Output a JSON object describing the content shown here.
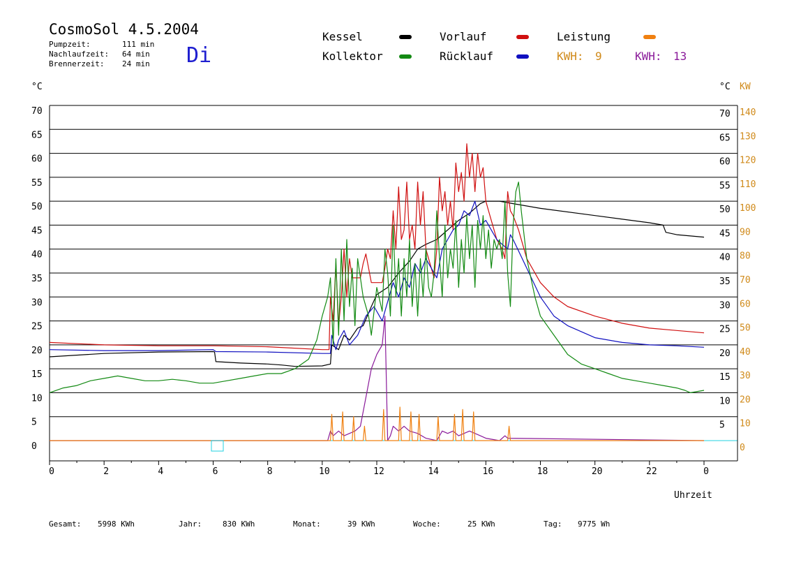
{
  "header": {
    "title": "CosmoSol 4.5.2004",
    "day": "Di",
    "stats": [
      {
        "label": "Pumpzeit:",
        "value": "111 min"
      },
      {
        "label": "Nachlaufzeit:",
        "value": "64 min"
      },
      {
        "label": "Brennerzeit:",
        "value": "24 min"
      }
    ]
  },
  "legend": {
    "kessel": "Kessel",
    "kollektor": "Kollektor",
    "vorlauf": "Vorlauf",
    "ruecklauf": "Rücklauf",
    "leistung": "Leistung",
    "kwh1_label": "KWH:",
    "kwh1_value": "9",
    "kwh2_label": "KWH:",
    "kwh2_value": "13"
  },
  "axes": {
    "left_unit": "°C",
    "right_unit_c": "°C",
    "right_unit_kw": "KW",
    "xlabel": "Uhrzeit"
  },
  "footer": {
    "gesamt_label": "Gesamt:",
    "gesamt_value": "5998 KWh",
    "jahr_label": "Jahr:",
    "jahr_value": "830 KWh",
    "monat_label": "Monat:",
    "monat_value": "39 KWh",
    "woche_label": "Woche:",
    "woche_value": "25 KWh",
    "tag_label": "Tag:",
    "tag_value": "9775 Wh"
  },
  "colors": {
    "kessel": "#000000",
    "kollektor": "#138a13",
    "vorlauf": "#d01010",
    "ruecklauf": "#1010c0",
    "leistung": "#f08010",
    "kwh2": "#8a1a9a",
    "kw_axis": "#d08a1a",
    "baseline": "#22d0e0"
  },
  "chart_data": {
    "type": "line",
    "x_ticks": [
      "0",
      "2",
      "4",
      "6",
      "8",
      "10",
      "12",
      "14",
      "16",
      "18",
      "20",
      "22",
      "0"
    ],
    "xlim": [
      0,
      24
    ],
    "ylim": [
      0,
      70
    ],
    "y_ticks_left": [
      "0",
      "5",
      "10",
      "15",
      "20",
      "25",
      "30",
      "35",
      "40",
      "45",
      "50",
      "55",
      "60",
      "65",
      "70"
    ],
    "y2lim": [
      0,
      140
    ],
    "y_ticks_right_kw": [
      "0",
      "10",
      "20",
      "30",
      "40",
      "50",
      "60",
      "70",
      "80",
      "90",
      "100",
      "110",
      "120",
      "130",
      "140"
    ],
    "series": [
      {
        "name": "Kessel",
        "color": "#000000",
        "x": [
          0,
          2,
          4,
          6,
          6.05,
          6.1,
          7,
          8,
          8.5,
          9,
          10,
          10.3,
          10.35,
          10.6,
          10.8,
          11,
          11.3,
          11.5,
          11.8,
          12,
          12.4,
          12.8,
          13.2,
          13.5,
          13.8,
          14.2,
          14.6,
          15,
          15.4,
          15.8,
          16,
          16.5,
          17,
          18,
          20,
          22,
          22.5,
          22.6,
          23,
          24
        ],
        "y": [
          17.5,
          18.2,
          18.5,
          18.6,
          18.5,
          16.5,
          16.2,
          16.0,
          15.8,
          15.5,
          15.6,
          16.0,
          20.0,
          19.0,
          22.0,
          21.0,
          23.5,
          24.0,
          28.0,
          30.5,
          32.0,
          35.0,
          37.5,
          40.0,
          41.0,
          42.0,
          44.0,
          46.0,
          47.5,
          49.5,
          50.0,
          50.0,
          49.5,
          48.5,
          47.0,
          45.5,
          45.0,
          43.5,
          43.0,
          42.5
        ]
      },
      {
        "name": "Vorlauf",
        "color": "#d01010",
        "x": [
          0,
          2,
          4,
          6,
          8,
          10,
          10.25,
          10.3,
          10.4,
          10.5,
          10.6,
          10.7,
          10.8,
          10.9,
          11.0,
          11.1,
          11.4,
          11.5,
          11.6,
          11.7,
          11.8,
          12.0,
          12.2,
          12.3,
          12.4,
          12.5,
          12.6,
          12.7,
          12.8,
          12.9,
          13.0,
          13.1,
          13.2,
          13.3,
          13.4,
          13.5,
          13.6,
          13.7,
          13.8,
          13.9,
          14.0,
          14.1,
          14.2,
          14.3,
          14.4,
          14.5,
          14.6,
          14.7,
          14.8,
          14.9,
          15.0,
          15.1,
          15.2,
          15.3,
          15.4,
          15.5,
          15.6,
          15.7,
          15.8,
          15.9,
          16.0,
          16.1,
          16.2,
          16.3,
          16.4,
          16.5,
          16.6,
          16.7,
          16.8,
          16.9,
          17.0,
          17.2,
          17.5,
          18,
          18.5,
          19,
          20,
          21,
          22,
          23,
          24
        ],
        "y": [
          20.5,
          20.0,
          19.8,
          19.8,
          19.6,
          19.0,
          19.0,
          30.0,
          25.0,
          37.0,
          24.0,
          30.0,
          40.0,
          30.0,
          38.0,
          34.0,
          34.0,
          37.0,
          39.0,
          36.0,
          33.0,
          33.0,
          33.0,
          36.0,
          40.0,
          38.0,
          48.0,
          40.0,
          53.0,
          42.0,
          44.0,
          54.0,
          42.0,
          45.0,
          40.0,
          54.0,
          45.0,
          52.0,
          40.0,
          38.0,
          36.0,
          34.0,
          40.0,
          55.0,
          48.0,
          52.0,
          45.0,
          50.0,
          44.0,
          58.0,
          52.0,
          56.0,
          50.0,
          62.0,
          55.0,
          60.0,
          52.0,
          60.0,
          55.0,
          57.0,
          50.0,
          48.0,
          46.0,
          44.0,
          42.0,
          41.0,
          40.0,
          38.0,
          52.0,
          48.0,
          47.0,
          44.0,
          38.0,
          33.0,
          30.0,
          28.0,
          26.0,
          24.5,
          23.5,
          23.0,
          22.5
        ]
      },
      {
        "name": "Rücklauf",
        "color": "#1010c0",
        "x": [
          0,
          2,
          4,
          6,
          6.1,
          8,
          10,
          10.3,
          10.35,
          10.5,
          10.6,
          10.8,
          11,
          11.3,
          11.6,
          11.9,
          12.2,
          12.4,
          12.6,
          12.8,
          13,
          13.2,
          13.4,
          13.6,
          13.8,
          14,
          14.2,
          14.4,
          14.6,
          14.8,
          15,
          15.2,
          15.4,
          15.6,
          15.8,
          16,
          16.2,
          16.4,
          16.6,
          16.8,
          16.9,
          17,
          17.5,
          18,
          18.5,
          19,
          20,
          21,
          22,
          23,
          24
        ],
        "y": [
          19.0,
          18.8,
          18.8,
          19.0,
          18.6,
          18.5,
          18.2,
          18.2,
          22.0,
          19.0,
          21.0,
          23.0,
          20.0,
          22.0,
          26.0,
          28.0,
          25.0,
          29.0,
          33.0,
          30.0,
          34.0,
          32.0,
          37.0,
          35.0,
          38.0,
          36.0,
          34.0,
          40.0,
          42.0,
          44.0,
          45.0,
          48.0,
          47.0,
          50.0,
          45.0,
          46.0,
          44.0,
          42.0,
          41.0,
          40.0,
          43.0,
          42.0,
          36.0,
          30.0,
          26.0,
          24.0,
          21.5,
          20.5,
          20.0,
          19.8,
          19.5
        ]
      },
      {
        "name": "Kollektor",
        "color": "#138a13",
        "x": [
          0,
          0.5,
          1,
          1.5,
          2,
          2.5,
          3,
          3.5,
          4,
          4.5,
          5,
          5.5,
          6,
          6.5,
          7,
          7.5,
          8,
          8.5,
          9,
          9.5,
          9.8,
          10,
          10.2,
          10.3,
          10.4,
          10.5,
          10.6,
          10.7,
          10.8,
          10.9,
          11,
          11.1,
          11.2,
          11.3,
          11.5,
          11.7,
          11.8,
          12,
          12.2,
          12.3,
          12.4,
          12.5,
          12.6,
          12.7,
          12.8,
          12.9,
          13,
          13.1,
          13.2,
          13.3,
          13.4,
          13.5,
          13.6,
          13.7,
          13.8,
          13.9,
          14,
          14.1,
          14.2,
          14.3,
          14.4,
          14.5,
          14.6,
          14.7,
          14.8,
          14.9,
          15,
          15.1,
          15.2,
          15.3,
          15.4,
          15.5,
          15.6,
          15.7,
          15.8,
          15.9,
          16,
          16.1,
          16.2,
          16.3,
          16.4,
          16.5,
          16.6,
          16.7,
          16.8,
          16.9,
          17,
          17.1,
          17.2,
          17.3,
          17.5,
          17.8,
          18,
          18.5,
          19,
          19.5,
          20,
          20.5,
          21,
          21.5,
          22,
          22.5,
          23,
          23.3,
          23.5,
          24
        ],
        "y": [
          10.0,
          11.0,
          11.5,
          12.5,
          13.0,
          13.5,
          13.0,
          12.5,
          12.5,
          12.8,
          12.5,
          12.0,
          12.0,
          12.5,
          13.0,
          13.5,
          14.0,
          14.0,
          15.0,
          17.0,
          21.0,
          26.0,
          30.0,
          34.0,
          20.0,
          38.0,
          22.0,
          40.0,
          25.0,
          42.0,
          28.0,
          36.0,
          24.0,
          38.0,
          30.0,
          26.0,
          22.0,
          32.0,
          27.0,
          40.0,
          35.0,
          26.0,
          45.0,
          30.0,
          38.0,
          26.0,
          38.0,
          30.0,
          42.0,
          28.0,
          37.0,
          26.0,
          38.0,
          30.0,
          40.0,
          32.0,
          30.0,
          35.0,
          48.0,
          38.0,
          30.0,
          45.0,
          34.0,
          40.0,
          36.0,
          46.0,
          32.0,
          42.0,
          35.0,
          47.0,
          38.0,
          45.0,
          32.0,
          46.0,
          40.0,
          47.0,
          38.0,
          44.0,
          36.0,
          42.0,
          40.0,
          42.0,
          38.0,
          50.0,
          35.0,
          28.0,
          45.0,
          52.0,
          54.0,
          48.0,
          38.0,
          30.0,
          26.0,
          22.0,
          18.0,
          16.0,
          15.0,
          14.0,
          13.0,
          12.5,
          12.0,
          11.5,
          11.0,
          10.5,
          10.0,
          10.5
        ]
      },
      {
        "name": "KWH 13",
        "color": "#8a1a9a",
        "x": [
          0,
          10.2,
          10.3,
          10.4,
          10.6,
          10.8,
          11,
          11.2,
          11.4,
          11.6,
          11.8,
          12,
          12.2,
          12.3,
          12.4,
          12.5,
          12.6,
          12.8,
          13,
          13.2,
          13.5,
          13.8,
          14.2,
          14.4,
          14.6,
          14.8,
          15,
          15.2,
          15.4,
          15.6,
          15.8,
          16,
          16.5,
          16.7,
          16.8,
          24
        ],
        "y": [
          0,
          0,
          2.0,
          1.0,
          2.0,
          1.0,
          1.5,
          2.0,
          3.0,
          9.0,
          15.0,
          18.0,
          20.0,
          26.0,
          0,
          1.0,
          3.0,
          2.0,
          3.0,
          2.0,
          1.5,
          0.5,
          0,
          2.0,
          1.5,
          2.0,
          1.0,
          1.5,
          2.0,
          1.5,
          1.0,
          0.5,
          0,
          1.0,
          0.5,
          0
        ]
      },
      {
        "name": "Leistung",
        "color": "#f08010",
        "x": [
          0,
          10.2,
          10.3,
          10.35,
          10.4,
          10.7,
          10.75,
          10.8,
          11.1,
          11.15,
          11.2,
          11.5,
          11.55,
          11.6,
          12.2,
          12.25,
          12.3,
          12.8,
          12.85,
          12.9,
          13.2,
          13.25,
          13.3,
          13.5,
          13.55,
          13.6,
          14.2,
          14.25,
          14.3,
          14.8,
          14.85,
          14.9,
          15.1,
          15.15,
          15.2,
          15.5,
          15.55,
          15.6,
          16.8,
          16.85,
          16.9,
          24
        ],
        "y": [
          0,
          0,
          0,
          5.5,
          0,
          0,
          6.0,
          0,
          0,
          5.0,
          0,
          0,
          3.0,
          0,
          0,
          6.5,
          0,
          0,
          7.0,
          0,
          0,
          6.0,
          0,
          0,
          5.5,
          0,
          0,
          5.0,
          0,
          0,
          5.5,
          0,
          0,
          6.5,
          0,
          0,
          6.0,
          0,
          0,
          3.0,
          0,
          0
        ]
      }
    ]
  }
}
